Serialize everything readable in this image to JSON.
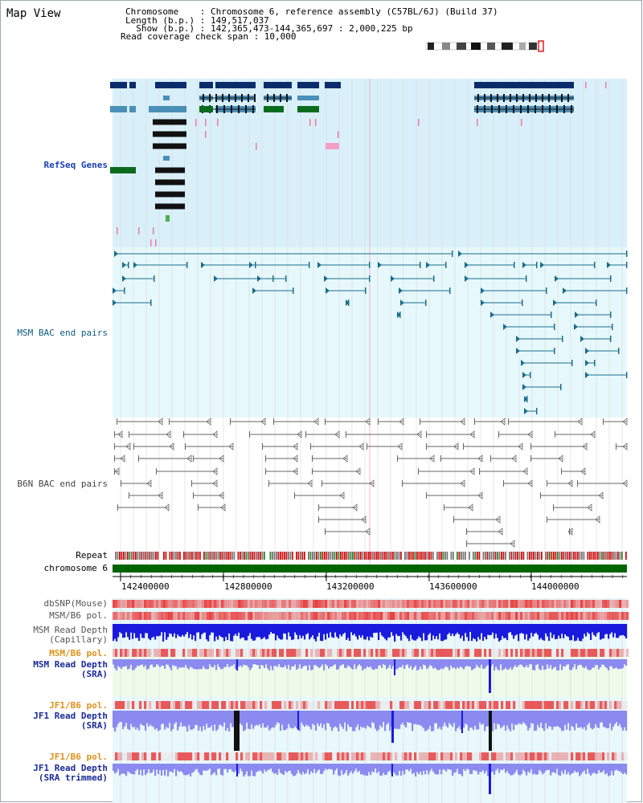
{
  "page": {
    "title": "Map View"
  },
  "info": {
    "line1": "Chromosome    : Chromosome 6, reference assembly (C57BL/6J) (Build 37)",
    "line2": "Length (b.p.) : 149,517,037",
    "line3": "  Show (b.p.) : 142,365,473-144,365,697 : 2,000,225 bp",
    "line4": "Read coverage check span : 10,000"
  },
  "tracks": {
    "refseq": "RefSeq Genes",
    "msm_bac": "MSM BAC end pairs",
    "b6n_bac": "B6N BAC end pairs",
    "repeat": "Repeat",
    "chromosome": "chromosome 6",
    "dbsnp": "dbSNP(Mouse)",
    "msm_b6_pol_1": "MSM/B6 pol.",
    "msm_depth_cap_1": "MSM Read Depth",
    "msm_depth_cap_2": "(Capillary)",
    "msm_b6_pol_2": "MSM/B6 pol.",
    "msm_depth_sra_1": "MSM Read Depth",
    "msm_depth_sra_2": "(SRA)",
    "jf1_b6_pol_1": "JF1/B6 pol.",
    "jf1_depth_sra_1": "JF1 Read Depth",
    "jf1_depth_sra_2": "(SRA)",
    "jf1_b6_pol_2": "JF1/B6 pol.",
    "jf1_depth_trim_1": "JF1 Read Depth",
    "jf1_depth_trim_2": "(SRA trimmed)"
  },
  "axis": {
    "ticks": [
      "142400000",
      "142800000",
      "143200000",
      "143600000",
      "144000000"
    ]
  },
  "colors": {
    "refseq_bg": "#d9f0fa",
    "msm_bg": "#e6f8fb",
    "gene_dark": "#0b2c6b",
    "gene_mid": "#4a8fb8",
    "gene_green": "#0a6b1e",
    "bac_teal": "#1a6e8c",
    "bac_gray": "#666666",
    "chromosome_bar": "#006400",
    "depth_blue": "#1a1adc",
    "depth_light": "#8a8af0",
    "pol_red": "#e84040"
  }
}
